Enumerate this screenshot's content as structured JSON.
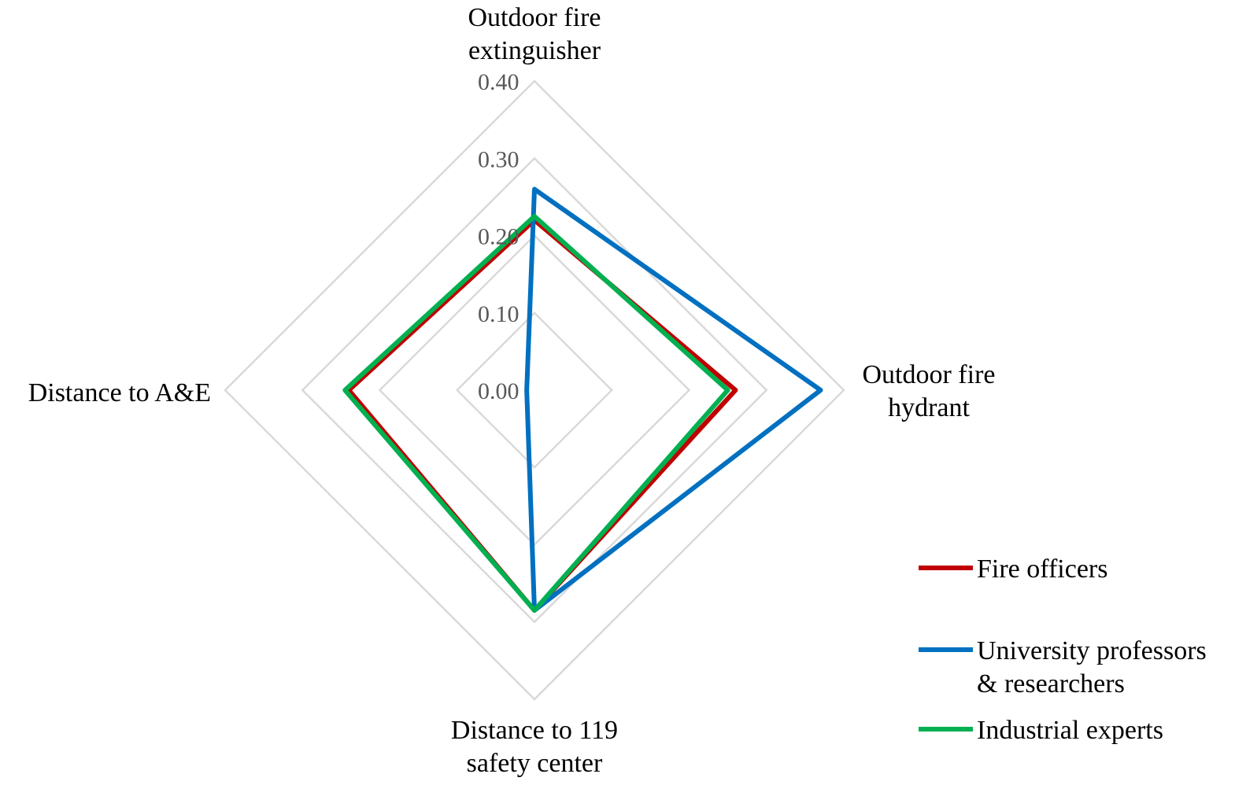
{
  "chart_data": {
    "type": "radar",
    "categories": [
      [
        "Outdoor fire",
        "extinguisher"
      ],
      [
        "Outdoor fire",
        "hydrant"
      ],
      [
        "Distance to 119",
        "safety center"
      ],
      [
        "Distance to A&E"
      ]
    ],
    "axis": {
      "min": 0,
      "max": 0.4,
      "ticks": [
        "0.00",
        "0.10",
        "0.20",
        "0.30",
        "0.40"
      ],
      "tick_values": [
        0,
        0.1,
        0.2,
        0.3,
        0.4
      ]
    },
    "grid": true,
    "legend_position": "bottom-right",
    "series": [
      {
        "name": "Fire officers",
        "color": "#c00000",
        "values": [
          0.22,
          0.26,
          0.285,
          0.24
        ]
      },
      {
        "name": [
          "University professors",
          "& researchers"
        ],
        "color": "#0070c0",
        "values": [
          0.26,
          0.37,
          0.285,
          0.01
        ]
      },
      {
        "name": "Industrial experts",
        "color": "#00b050",
        "values": [
          0.225,
          0.25,
          0.285,
          0.245
        ]
      }
    ]
  }
}
